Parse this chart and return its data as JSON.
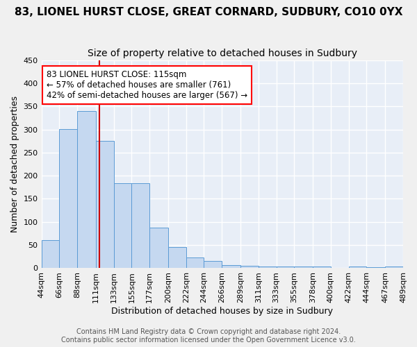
{
  "title": "83, LIONEL HURST CLOSE, GREAT CORNARD, SUDBURY, CO10 0YX",
  "subtitle": "Size of property relative to detached houses in Sudbury",
  "xlabel": "Distribution of detached houses by size in Sudbury",
  "ylabel": "Number of detached properties",
  "bar_color": "#c5d8f0",
  "bar_edge_color": "#5b9bd5",
  "background_color": "#e8eef7",
  "grid_color": "#ffffff",
  "vline_x": 115,
  "vline_color": "#cc0000",
  "annotation_lines": [
    "83 LIONEL HURST CLOSE: 115sqm",
    "← 57% of detached houses are smaller (761)",
    "42% of semi-detached houses are larger (567) →"
  ],
  "bin_edges": [
    44,
    66,
    88,
    111,
    133,
    155,
    177,
    200,
    222,
    244,
    266,
    289,
    311,
    333,
    355,
    378,
    400,
    422,
    444,
    467,
    489
  ],
  "bin_labels": [
    "44sqm",
    "66sqm",
    "88sqm",
    "111sqm",
    "133sqm",
    "155sqm",
    "177sqm",
    "200sqm",
    "222sqm",
    "244sqm",
    "266sqm",
    "289sqm",
    "311sqm",
    "333sqm",
    "355sqm",
    "378sqm",
    "400sqm",
    "422sqm",
    "444sqm",
    "467sqm",
    "489sqm"
  ],
  "bar_heights": [
    60,
    301,
    340,
    275,
    184,
    184,
    88,
    45,
    23,
    15,
    7,
    5,
    3,
    3,
    3,
    3,
    0,
    4,
    2,
    3
  ],
  "ylim": [
    0,
    450
  ],
  "yticks": [
    0,
    50,
    100,
    150,
    200,
    250,
    300,
    350,
    400,
    450
  ],
  "footer_lines": [
    "Contains HM Land Registry data © Crown copyright and database right 2024.",
    "Contains public sector information licensed under the Open Government Licence v3.0."
  ],
  "title_fontsize": 11,
  "subtitle_fontsize": 10,
  "axis_label_fontsize": 9,
  "tick_fontsize": 8,
  "footer_fontsize": 7
}
